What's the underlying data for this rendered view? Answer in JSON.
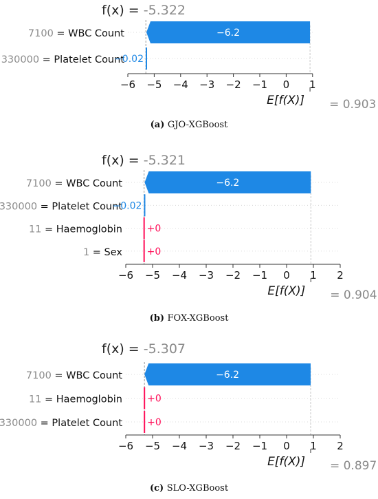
{
  "chart_data": [
    {
      "type": "waterfall",
      "fx_label": "f(x) = ",
      "fx_value": "-5.322",
      "base_value": 0.903,
      "base_label": "E[f(X)]",
      "base_value_label": "= 0.903",
      "xlim": [
        -6,
        1
      ],
      "xticks": [
        "−6",
        "−5",
        "−4",
        "−3",
        "−2",
        "−1",
        "0",
        "1"
      ],
      "features": [
        {
          "value_text": "7100",
          "name": "WBC Count",
          "contribution": -6.2,
          "label": "−6.2"
        },
        {
          "value_text": "330000",
          "name": "Platelet Count",
          "contribution": -0.02,
          "label": "−0.02"
        }
      ],
      "caption_letter": "(a)",
      "caption": "GJO-XGBoost"
    },
    {
      "type": "waterfall",
      "fx_label": "f(x) = ",
      "fx_value": "-5.321",
      "base_value": 0.904,
      "base_label": "E[f(X)]",
      "base_value_label": "= 0.904",
      "xlim": [
        -6,
        2
      ],
      "xticks": [
        "−6",
        "−5",
        "−4",
        "−3",
        "−2",
        "−1",
        "0",
        "1",
        "2"
      ],
      "features": [
        {
          "value_text": "7100",
          "name": "WBC Count",
          "contribution": -6.2,
          "label": "−6.2"
        },
        {
          "value_text": "330000",
          "name": "Platelet Count",
          "contribution": -0.02,
          "label": "−0.02"
        },
        {
          "value_text": "11",
          "name": "Haemoglobin",
          "contribution": 0,
          "label": "+0"
        },
        {
          "value_text": "1",
          "name": "Sex",
          "contribution": 0,
          "label": "+0"
        }
      ],
      "caption_letter": "(b)",
      "caption": "FOX-XGBoost"
    },
    {
      "type": "waterfall",
      "fx_label": "f(x) = ",
      "fx_value": "-5.307",
      "base_value": 0.897,
      "base_label": "E[f(X)]",
      "base_value_label": "= 0.897",
      "xlim": [
        -6,
        2
      ],
      "xticks": [
        "−6",
        "−5",
        "−4",
        "−3",
        "−2",
        "−1",
        "0",
        "1",
        "2"
      ],
      "features": [
        {
          "value_text": "7100",
          "name": "WBC Count",
          "contribution": -6.2,
          "label": "−6.2"
        },
        {
          "value_text": "11",
          "name": "Haemoglobin",
          "contribution": 0,
          "label": "+0"
        },
        {
          "value_text": "330000",
          "name": "Platelet Count",
          "contribution": 0,
          "label": "+0"
        }
      ],
      "caption_letter": "(c)",
      "caption": "SLO-XGBoost"
    }
  ],
  "colors": {
    "negative": "#1e88e5",
    "positive": "#ff0d57",
    "gray_text": "#8a8a8a",
    "axis": "#333333"
  }
}
